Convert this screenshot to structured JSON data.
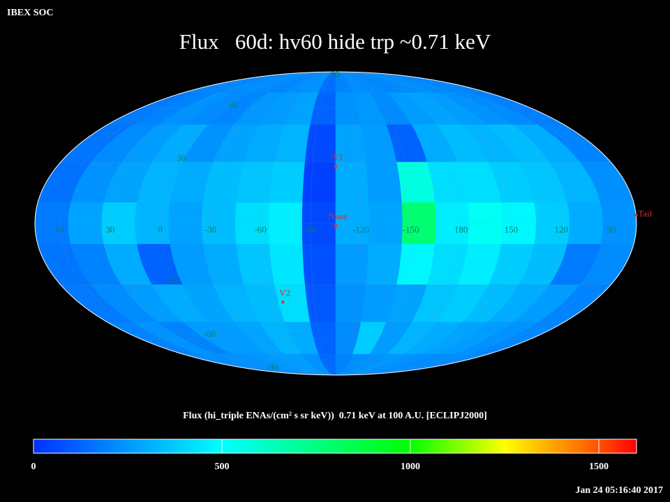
{
  "header": {
    "org": "IBEX SOC",
    "title": "Flux   60d: hv60 hide trp ~0.71 keV",
    "timestamp": "Jan 24 05:16:40 2017"
  },
  "chart_data": {
    "type": "heatmap",
    "projection": "mollweide",
    "colorbar_label": "Flux (hi_triple ENAs/(cm² s sr keV))  0.71 keV at 100 A.U. [ECLIPJ2000]",
    "clim": [
      0,
      1600
    ],
    "cticks": [
      0,
      500,
      1000,
      1500
    ],
    "colorscale": [
      [
        0,
        "#0030ff"
      ],
      [
        500,
        "#00ffff"
      ],
      [
        1000,
        "#00ff00"
      ],
      [
        1250,
        "#ffff00"
      ],
      [
        1500,
        "#ff5000"
      ],
      [
        1600,
        "#ff0000"
      ]
    ],
    "lat_edges": [
      90,
      70,
      50,
      30,
      10,
      -10,
      -30,
      -50,
      -70,
      -90
    ],
    "lon_edges": [
      75,
      55,
      35,
      15,
      -5,
      -25,
      -45,
      -65,
      -85,
      -105,
      -125,
      -145,
      -165,
      -185,
      -205,
      -225,
      -245,
      -265,
      -285
    ],
    "values": [
      [
        200,
        210,
        220,
        230,
        220,
        210,
        230,
        240,
        150,
        200,
        230,
        220,
        210,
        220,
        230,
        220,
        210,
        200
      ],
      [
        180,
        200,
        240,
        220,
        210,
        250,
        260,
        280,
        120,
        240,
        250,
        220,
        260,
        280,
        260,
        240,
        220,
        190
      ],
      [
        170,
        220,
        260,
        300,
        240,
        280,
        300,
        320,
        60,
        280,
        260,
        120,
        300,
        340,
        320,
        340,
        300,
        200
      ],
      [
        160,
        240,
        280,
        320,
        300,
        340,
        360,
        380,
        40,
        300,
        260,
        560,
        420,
        420,
        380,
        360,
        320,
        230
      ],
      [
        180,
        280,
        380,
        320,
        280,
        340,
        420,
        460,
        60,
        300,
        280,
        780,
        460,
        520,
        480,
        380,
        300,
        240
      ],
      [
        170,
        200,
        300,
        120,
        260,
        300,
        360,
        440,
        80,
        260,
        300,
        480,
        420,
        460,
        380,
        340,
        180,
        220
      ],
      [
        180,
        220,
        260,
        300,
        280,
        320,
        340,
        420,
        100,
        240,
        260,
        280,
        360,
        380,
        340,
        300,
        260,
        200
      ],
      [
        200,
        240,
        200,
        260,
        260,
        280,
        320,
        300,
        120,
        220,
        380,
        260,
        320,
        300,
        280,
        260,
        240,
        210
      ],
      [
        220,
        230,
        240,
        240,
        250,
        260,
        260,
        240,
        140,
        200,
        230,
        240,
        250,
        240,
        230,
        220,
        230,
        220
      ]
    ],
    "lon_labels": [
      60,
      30,
      0,
      -30,
      -60,
      -90,
      -120,
      -150,
      180,
      150,
      120,
      90
    ],
    "lat_labels": [
      90,
      60,
      30,
      -30,
      -60,
      -90
    ],
    "markers": [
      {
        "label": "V1",
        "lon": -105,
        "lat": 28
      },
      {
        "label": "Nose",
        "lon": -105,
        "lat": -1
      },
      {
        "label": "V2",
        "lon": -68,
        "lat": -39
      },
      {
        "label": "Tail",
        "lon": 75,
        "lat": 4
      }
    ]
  }
}
